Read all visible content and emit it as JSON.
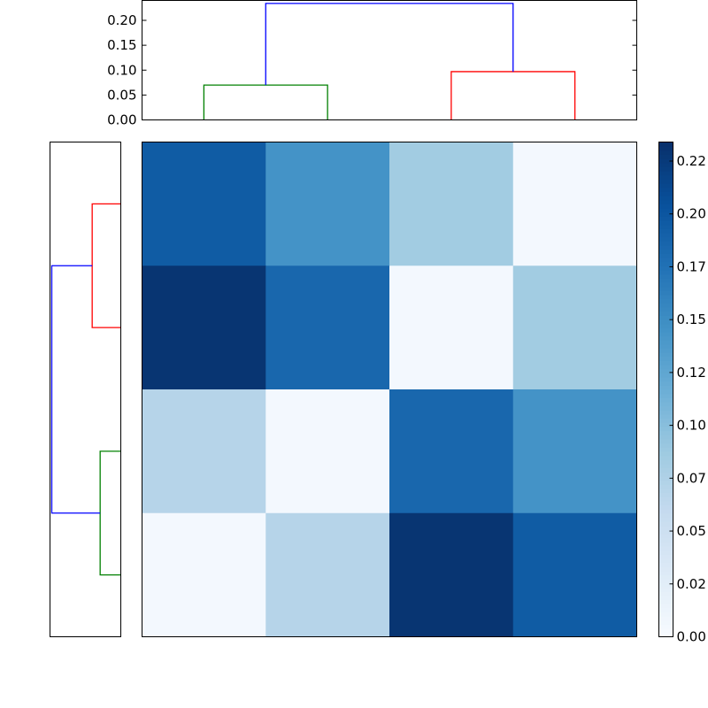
{
  "chart_data": [
    {
      "type": "line",
      "role": "top-dendrogram",
      "ylim": [
        0,
        0.24
      ],
      "yticks": [
        "0.00",
        "0.05",
        "0.10",
        "0.15",
        "0.20"
      ],
      "leaves": 4,
      "links": [
        {
          "left": 0,
          "right": 1,
          "height": 0.07,
          "color": "#008000"
        },
        {
          "left": 2,
          "right": 3,
          "height": 0.097,
          "color": "#ff0000"
        },
        {
          "left": 0.5,
          "right": 2.5,
          "height": 0.234,
          "color": "#0000ff"
        }
      ]
    },
    {
      "type": "line",
      "role": "left-dendrogram",
      "leaves": 4,
      "links": [
        {
          "top": 0,
          "bottom": 1,
          "height": 0.097,
          "color": "#ff0000"
        },
        {
          "top": 2,
          "bottom": 3,
          "height": 0.07,
          "color": "#008000"
        },
        {
          "top": 0.5,
          "bottom": 2.5,
          "height": 0.234,
          "color": "#0000ff"
        }
      ],
      "max_height": 0.24
    },
    {
      "type": "heatmap",
      "rows": 4,
      "cols": 4,
      "values": [
        [
          0.195,
          0.145,
          0.085,
          0.005
        ],
        [
          0.23,
          0.185,
          0.005,
          0.085
        ],
        [
          0.07,
          0.005,
          0.185,
          0.145
        ],
        [
          0.005,
          0.07,
          0.23,
          0.195
        ]
      ],
      "vmin": 0.0,
      "vmax": 0.234,
      "colormap": "Blues",
      "colorbar_ticks": [
        "0.00",
        "0.02",
        "0.05",
        "0.07",
        "0.10",
        "0.12",
        "0.15",
        "0.17",
        "0.20",
        "0.22"
      ],
      "colorbar_tick_values": [
        0.0,
        0.025,
        0.05,
        0.075,
        0.1,
        0.125,
        0.15,
        0.175,
        0.2,
        0.225
      ]
    }
  ]
}
